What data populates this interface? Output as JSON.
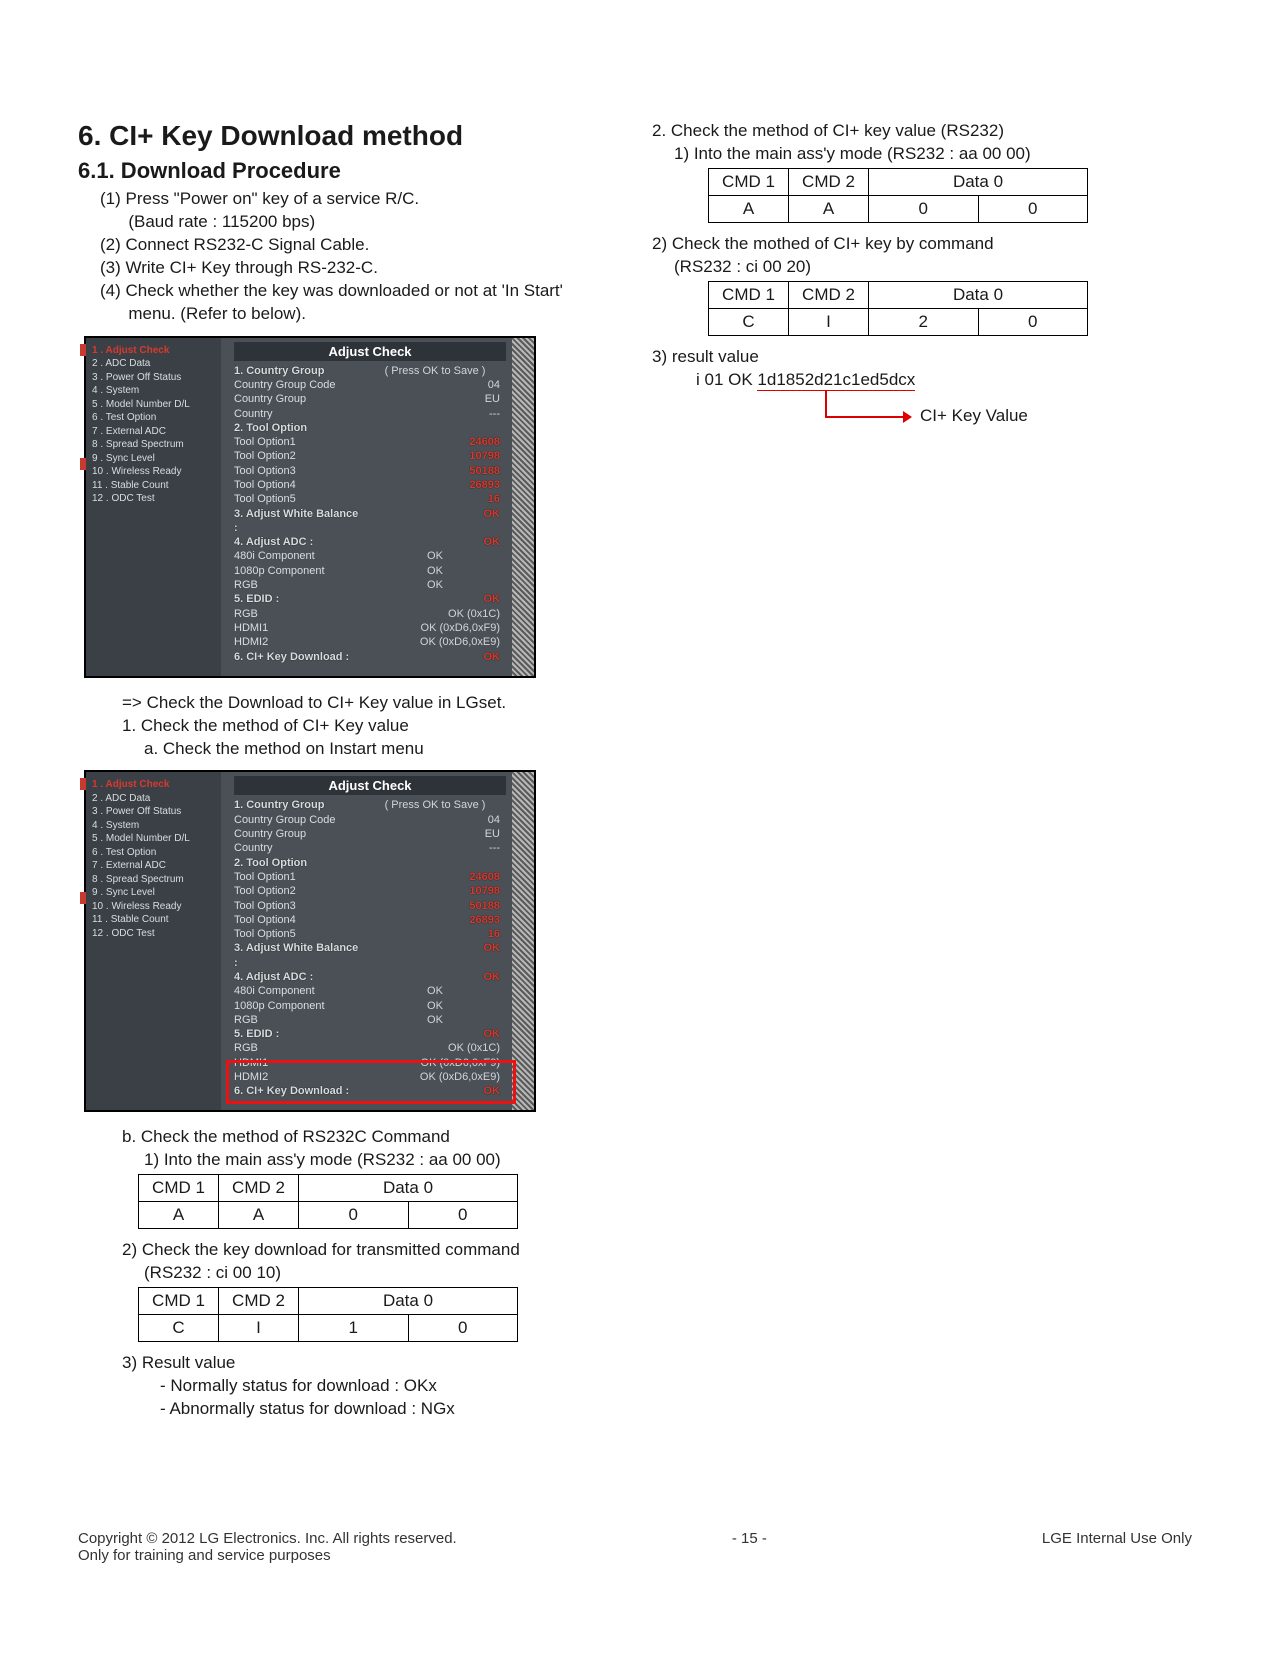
{
  "headings": {
    "h1": "6. CI+ Key Download method",
    "h2": "6.1. Download Procedure"
  },
  "left": {
    "steps": [
      "(1) Press \"Power on\" key of a service R/C.",
      "      (Baud rate : 115200 bps)",
      "(2) Connect RS232-C Signal Cable.",
      "(3) Write CI+ Key through RS-232-C.",
      "(4) Check whether the key was downloaded or not at 'In Start'",
      "      menu. (Refer to below)."
    ],
    "after1_a": "=> Check the Download to CI+ Key value in LGset.",
    "after1_b": "1. Check the method of CI+ Key value",
    "after1_c": "a. Check the method on Instart menu",
    "b_title": "b. Check the method of RS232C Command",
    "b1": "1) Into the main ass'y mode (RS232 : aa 00 00)",
    "b2": "2) Check the key download for transmitted command",
    "b2a": "(RS232 : ci 00 10)",
    "b3": "3) Result value",
    "b3a": "- Normally status for download : OKx",
    "b3b": "- Abnormally status for download : NGx"
  },
  "right": {
    "r2": "2. Check the method of CI+ key value (RS232)",
    "r2_1": "1) Into the main ass'y mode (RS232 : aa 00 00)",
    "r2_2": "2) Check the mothed of CI+ key by command",
    "r2_2a": "(RS232 : ci 00 20)",
    "r2_3": "3) result value",
    "r2_3a": "i 01 OK ",
    "r2_3b": "1d1852d21c1ed5dcx",
    "r2_3c": "CI+ Key Value"
  },
  "menu": {
    "title": "Adjust Check",
    "left_items": [
      "1 . Adjust Check",
      "2 . ADC Data",
      "3 . Power Off Status",
      "4 . System",
      "5 . Model Number D/L",
      "6 . Test Option",
      "7 . External ADC",
      "8 . Spread Spectrum",
      "9 . Sync Level",
      "10 . Wireless Ready",
      "11 . Stable Count",
      "12 . ODC Test"
    ],
    "right_rows": [
      {
        "red": "1. Country Group",
        "tail": "( Press OK to Save )"
      },
      {
        "lbl": "Country Group Code",
        "val": "04",
        "valr": true
      },
      {
        "lbl": "Country Group",
        "val": "EU",
        "valr": true
      },
      {
        "lbl": "Country",
        "val": "---",
        "valr": true
      },
      {
        "red": "2. Tool Option"
      },
      {
        "lbl": "Tool Option1",
        "val": "24608",
        "valr": true,
        "vred": true
      },
      {
        "lbl": "Tool Option2",
        "val": "10798",
        "valr": true,
        "vred": true
      },
      {
        "lbl": "Tool Option3",
        "val": "50188",
        "valr": true,
        "vred": true
      },
      {
        "lbl": "Tool Option4",
        "val": "26893",
        "valr": true,
        "vred": true
      },
      {
        "lbl": "Tool Option5",
        "val": "16",
        "valr": true,
        "vred": true
      },
      {
        "red": "3. Adjust White Balance :",
        "val": "OK",
        "valr": true,
        "vred": true
      },
      {
        "red": "4. Adjust ADC :",
        "val": "OK",
        "valr": true,
        "vred": true
      },
      {
        "lbl": "480i Component",
        "val": "OK"
      },
      {
        "lbl": "1080p Component",
        "val": "OK"
      },
      {
        "lbl": "RGB",
        "val": "OK"
      },
      {
        "red": "5. EDID :",
        "val": "OK",
        "valr": true,
        "vred": true
      },
      {
        "lbl": "RGB",
        "val": "OK (0x1C)",
        "valr": true
      },
      {
        "lbl": "HDMI1",
        "val": "OK (0xD6,0xF9)",
        "valr": true
      },
      {
        "lbl": "HDMI2",
        "val": "OK (0xD6,0xE9)",
        "valr": true
      },
      {
        "red": "6. CI+ Key Download :",
        "val": "OK",
        "valr": true,
        "vred": true
      }
    ]
  },
  "tables": {
    "headers": [
      "CMD 1",
      "CMD 2",
      "Data 0"
    ],
    "t1": [
      "A",
      "A",
      "0",
      "0"
    ],
    "t2": [
      "C",
      "I",
      "1",
      "0"
    ],
    "t3": [
      "A",
      "A",
      "0",
      "0"
    ],
    "t4": [
      "C",
      "I",
      "2",
      "0"
    ]
  },
  "footer": {
    "left1": "Copyright  © 2012  LG Electronics. Inc. All rights reserved.",
    "left2": "Only for training and service purposes",
    "center": "- 15 -",
    "right": "LGE Internal Use Only"
  }
}
